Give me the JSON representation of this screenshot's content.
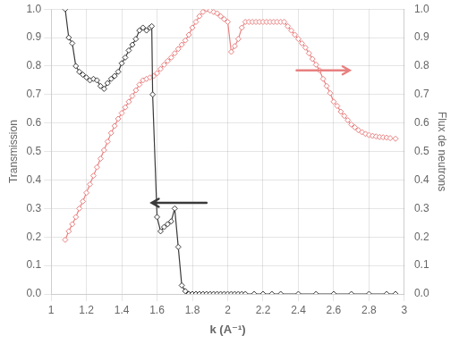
{
  "chart_data": {
    "type": "line",
    "xlabel": "k (A⁻¹)",
    "ylabel": "Transmission",
    "y2label": "Flux de neutrons",
    "xlim": [
      1.0,
      3.0
    ],
    "xticks": [
      1,
      1.2,
      1.4,
      1.6,
      1.8,
      2,
      2.2,
      2.4,
      2.6,
      2.8,
      3
    ],
    "ylim": [
      0.0,
      1.0
    ],
    "yticks": [
      {
        "value": 0,
        "label": "0.0"
      },
      0.1,
      0.2,
      0.3,
      0.4,
      0.5,
      0.6,
      0.7,
      0.8,
      0.9,
      {
        "value": 1,
        "label": "1.0"
      }
    ],
    "y2lim": [
      0.0,
      1.0
    ],
    "y2ticks": [
      {
        "value": 0,
        "label": "0.0"
      },
      0.1,
      0.2,
      0.3,
      0.4,
      0.5,
      0.6,
      0.7,
      0.8,
      0.9,
      {
        "value": 1,
        "label": "1.0"
      }
    ],
    "grid": true,
    "series": [
      {
        "color": "#3a3a3a",
        "marker": "diamond",
        "x": [
          1.08,
          1.1,
          1.12,
          1.14,
          1.16,
          1.18,
          1.2,
          1.22,
          1.24,
          1.26,
          1.28,
          1.3,
          1.32,
          1.34,
          1.36,
          1.38,
          1.4,
          1.42,
          1.44,
          1.46,
          1.48,
          1.5,
          1.52,
          1.54,
          1.56,
          1.57,
          1.575,
          1.6,
          1.62,
          1.64,
          1.66,
          1.68,
          1.7,
          1.72,
          1.74,
          1.76,
          1.78,
          1.8,
          1.82,
          1.84,
          1.86,
          1.88,
          1.9,
          1.92,
          1.94,
          1.96,
          1.98,
          2.0,
          2.02,
          2.04,
          2.06,
          2.08,
          2.1,
          2.15,
          2.2,
          2.25,
          2.3,
          2.4,
          2.5,
          2.6,
          2.7,
          2.8,
          2.9,
          2.95
        ],
        "values": [
          1.0,
          0.9,
          0.88,
          0.8,
          0.78,
          0.77,
          0.76,
          0.75,
          0.755,
          0.75,
          0.73,
          0.72,
          0.74,
          0.755,
          0.765,
          0.78,
          0.81,
          0.83,
          0.855,
          0.875,
          0.895,
          0.925,
          0.935,
          0.925,
          0.935,
          0.94,
          0.7,
          0.27,
          0.22,
          0.235,
          0.245,
          0.255,
          0.3,
          0.165,
          0.03,
          0.01,
          0.0,
          0.0,
          0.0,
          0.0,
          0.0,
          0.0,
          0.0,
          0.0,
          0.0,
          0.0,
          0.0,
          0.0,
          0.0,
          0.0,
          0.0,
          0.0,
          0.0,
          0.0,
          0.0,
          0.0,
          0.0,
          0.0,
          0.0,
          0.0,
          0.0,
          0.0,
          0.0,
          0.0
        ]
      },
      {
        "color": "#e88080",
        "marker": "diamond",
        "axis": "y2",
        "x": [
          1.08,
          1.1,
          1.12,
          1.14,
          1.16,
          1.18,
          1.2,
          1.22,
          1.24,
          1.26,
          1.28,
          1.3,
          1.32,
          1.34,
          1.36,
          1.38,
          1.4,
          1.42,
          1.44,
          1.46,
          1.48,
          1.5,
          1.52,
          1.54,
          1.56,
          1.58,
          1.6,
          1.62,
          1.64,
          1.66,
          1.68,
          1.7,
          1.72,
          1.74,
          1.76,
          1.78,
          1.8,
          1.82,
          1.84,
          1.86,
          1.88,
          1.9,
          1.92,
          1.94,
          1.96,
          1.98,
          2.0,
          2.02,
          2.04,
          2.06,
          2.08,
          2.1,
          2.12,
          2.14,
          2.16,
          2.18,
          2.2,
          2.22,
          2.24,
          2.26,
          2.28,
          2.3,
          2.32,
          2.34,
          2.36,
          2.38,
          2.4,
          2.42,
          2.44,
          2.46,
          2.48,
          2.5,
          2.52,
          2.54,
          2.56,
          2.58,
          2.6,
          2.62,
          2.64,
          2.66,
          2.68,
          2.7,
          2.72,
          2.74,
          2.76,
          2.78,
          2.8,
          2.82,
          2.84,
          2.86,
          2.88,
          2.9,
          2.92,
          2.95
        ],
        "values": [
          0.19,
          0.22,
          0.245,
          0.27,
          0.3,
          0.325,
          0.355,
          0.385,
          0.415,
          0.445,
          0.475,
          0.505,
          0.535,
          0.565,
          0.59,
          0.615,
          0.635,
          0.655,
          0.675,
          0.695,
          0.715,
          0.735,
          0.75,
          0.755,
          0.76,
          0.765,
          0.775,
          0.79,
          0.805,
          0.818,
          0.83,
          0.845,
          0.86,
          0.875,
          0.89,
          0.91,
          0.935,
          0.955,
          0.975,
          0.99,
          1.0,
          0.995,
          0.99,
          0.985,
          0.975,
          0.965,
          0.955,
          0.85,
          0.87,
          0.895,
          0.935,
          0.955,
          0.955,
          0.955,
          0.955,
          0.955,
          0.955,
          0.955,
          0.955,
          0.955,
          0.955,
          0.955,
          0.955,
          0.94,
          0.925,
          0.91,
          0.895,
          0.88,
          0.865,
          0.845,
          0.825,
          0.805,
          0.785,
          0.755,
          0.73,
          0.705,
          0.675,
          0.66,
          0.64,
          0.625,
          0.61,
          0.595,
          0.585,
          0.575,
          0.568,
          0.562,
          0.558,
          0.555,
          0.553,
          0.551,
          0.55,
          0.549,
          0.547,
          0.545
        ]
      }
    ]
  }
}
